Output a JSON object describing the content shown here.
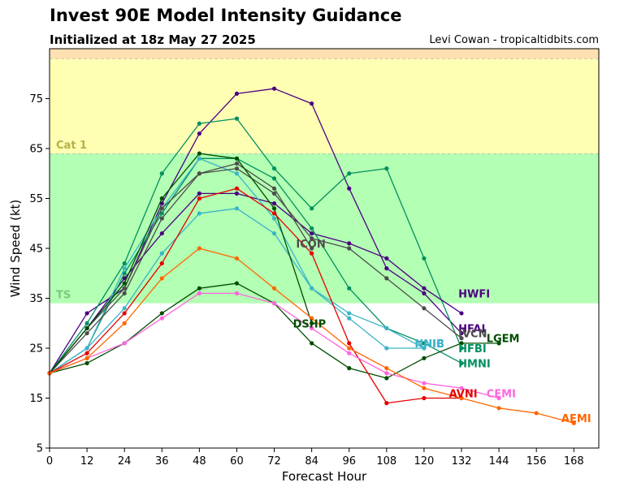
{
  "chart_data": {
    "type": "line",
    "title": "Invest 90E Model Intensity Guidance",
    "subtitle": "Initialized at 18z May 27 2025",
    "credit": "Levi Cowan - tropicaltidbits.com",
    "xlabel": "Forecast Hour",
    "ylabel": "Wind Speed (kt)",
    "xlim": [
      0,
      176
    ],
    "ylim": [
      5,
      85
    ],
    "x_ticks": [
      0,
      12,
      24,
      36,
      48,
      60,
      72,
      84,
      96,
      108,
      120,
      132,
      144,
      156,
      168
    ],
    "y_ticks": [
      5,
      15,
      25,
      35,
      45,
      55,
      65,
      75
    ],
    "bands": [
      {
        "name": "TS",
        "from": 34,
        "to": 64,
        "color": "#b3ffb3",
        "label": "TS"
      },
      {
        "name": "Cat 1",
        "from": 64,
        "to": 83,
        "color": "#ffffb3",
        "label": "Cat 1"
      },
      {
        "name": "Cat 2",
        "from": 83,
        "to": 85,
        "color": "#ffe0b3",
        "label": ""
      }
    ],
    "band_label_colors": {
      "TS": "#7ec97e",
      "Cat 1": "#b5b04a"
    },
    "series": [
      {
        "name": "HWFI",
        "color": "#4b0082",
        "label_pos": [
          131,
          36
        ],
        "x": [
          0,
          12,
          24,
          36,
          48,
          60,
          72,
          84,
          96,
          108,
          120,
          132
        ],
        "y": [
          20,
          32,
          37,
          54,
          68,
          76,
          77,
          74,
          57,
          41,
          36,
          28
        ]
      },
      {
        "name": "HMNI",
        "color": "#009060",
        "label_pos": [
          131,
          22
        ],
        "x": [
          0,
          12,
          24,
          36,
          48,
          60,
          72,
          84,
          96,
          108,
          120,
          132
        ],
        "y": [
          20,
          30,
          42,
          60,
          70,
          71,
          61,
          53,
          60,
          61,
          43,
          25
        ]
      },
      {
        "name": "HFAI",
        "color": "#4b0082",
        "label_pos": [
          131,
          29
        ],
        "x": [
          0,
          12,
          24,
          36,
          48,
          60,
          72,
          84,
          96,
          108,
          120,
          132
        ],
        "y": [
          20,
          29,
          39,
          48,
          56,
          56,
          54,
          48,
          46,
          43,
          37,
          32
        ]
      },
      {
        "name": "HFBI",
        "color": "#009060",
        "label_pos": [
          131,
          25
        ],
        "x": [
          0,
          12,
          24,
          36,
          48,
          60,
          72,
          84,
          96,
          108,
          120,
          132
        ],
        "y": [
          20,
          25,
          40,
          52,
          63,
          63,
          59,
          49,
          37,
          29,
          26,
          22
        ]
      },
      {
        "name": "NNIC",
        "color": "#3cb4c8",
        "label_pos": [
          117,
          26
        ],
        "x": [
          0,
          12,
          24,
          36,
          48,
          60,
          72,
          84,
          96,
          108,
          120
        ],
        "y": [
          20,
          25,
          41,
          53,
          63,
          60,
          51,
          37,
          31,
          25,
          25
        ]
      },
      {
        "name": "NNIB",
        "color": "#3cb4c8",
        "label_pos": [
          117,
          26
        ],
        "x": [
          0,
          12,
          24,
          36,
          48,
          60,
          72,
          84,
          96,
          108,
          120
        ],
        "y": [
          20,
          25,
          33,
          44,
          52,
          53,
          48,
          37,
          32,
          29,
          25
        ]
      },
      {
        "name": "IVCN",
        "color": "#4d4d4d",
        "label_pos": [
          131,
          28
        ],
        "x": [
          0,
          12,
          24,
          36,
          48,
          60,
          72,
          84,
          96,
          108,
          120,
          132
        ],
        "y": [
          20,
          28,
          36,
          51,
          60,
          61,
          56,
          47,
          45,
          39,
          33,
          27
        ]
      },
      {
        "name": "ICON",
        "color": "#4d4d4d",
        "label_pos": [
          79,
          46
        ],
        "x": [
          0,
          12,
          24,
          36,
          48,
          60,
          72,
          84
        ],
        "y": [
          20,
          29,
          37,
          53,
          60,
          62,
          57,
          45
        ]
      },
      {
        "name": "DSHP",
        "color": "#004d00",
        "label_pos": [
          78,
          30
        ],
        "x": [
          0,
          12,
          24,
          36,
          48,
          60,
          72,
          84
        ],
        "y": [
          20,
          29,
          38,
          55,
          64,
          63,
          53,
          30
        ]
      },
      {
        "name": "LGEM",
        "color": "#004d00",
        "label_pos": [
          140,
          27
        ],
        "x": [
          0,
          12,
          24,
          36,
          48,
          60,
          72,
          84,
          96,
          108,
          120,
          132,
          144
        ],
        "y": [
          20,
          22,
          26,
          32,
          37,
          38,
          34,
          26,
          21,
          19,
          23,
          26,
          26
        ]
      },
      {
        "name": "AVNI",
        "color": "#e60000",
        "label_pos": [
          128,
          16
        ],
        "x": [
          0,
          12,
          24,
          36,
          48,
          60,
          72,
          84,
          96,
          108,
          120,
          132
        ],
        "y": [
          20,
          24,
          32,
          42,
          55,
          57,
          52,
          44,
          26,
          14,
          15,
          15
        ]
      },
      {
        "name": "CEMI",
        "color": "#ff66e0",
        "label_pos": [
          140,
          16
        ],
        "x": [
          0,
          12,
          24,
          36,
          48,
          60,
          72,
          84,
          96,
          108,
          120,
          132,
          144
        ],
        "y": [
          20,
          23,
          26,
          31,
          36,
          36,
          34,
          29,
          24,
          20,
          18,
          17,
          15
        ]
      },
      {
        "name": "AEMI",
        "color": "#ff6600",
        "label_pos": [
          164,
          11
        ],
        "x": [
          0,
          12,
          24,
          36,
          48,
          60,
          72,
          84,
          96,
          108,
          120,
          132,
          144,
          156,
          168
        ],
        "y": [
          20,
          23,
          30,
          39,
          45,
          43,
          37,
          31,
          25,
          21,
          17,
          15,
          13,
          12,
          10
        ]
      }
    ],
    "grid": false,
    "legend": "none (labels at line ends)"
  }
}
